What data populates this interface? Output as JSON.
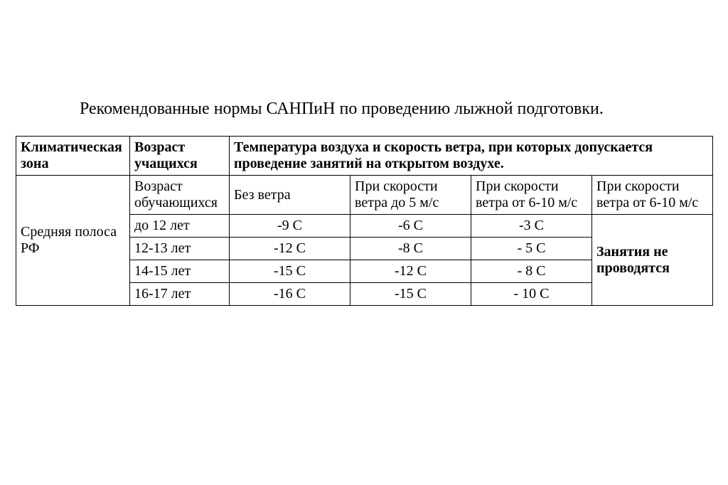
{
  "title": "Рекомендованные нормы САНПиН по проведению лыжной подготовки.",
  "table": {
    "header": {
      "zone": "Климатическая зона",
      "age": "Возраст учащихся",
      "conditions": "Температура  воздуха и скорость ветра, при которых допускается проведение занятий на открытом воздухе."
    },
    "subheader": {
      "age": "Возраст обучающихся",
      "c1": "Без ветра",
      "c2": "При скорости ветра до 5 м/с",
      "c3": "При скорости ветра от 6-10 м/с",
      "c4": "При скорости ветра от 6-10 м/с"
    },
    "zone_label": "Средняя полоса РФ",
    "no_classes": "Занятия не проводятся",
    "rows": [
      {
        "age": "до 12 лет",
        "c1": "-9 С",
        "c2": "-6 С",
        "c3": "-3 С"
      },
      {
        "age": "12-13 лет",
        "c1": "-12 С",
        "c2": "-8 С",
        "c3": "- 5 С"
      },
      {
        "age": "14-15 лет",
        "c1": "-15 С",
        "c2": "-12 С",
        "c3": "- 8 С"
      },
      {
        "age": "16-17 лет",
        "c1": "-16 С",
        "c2": "-15 С",
        "c3": "- 10 С"
      }
    ]
  },
  "style": {
    "background_color": "#ffffff",
    "border_color": "#000000",
    "text_color": "#000000",
    "title_fontsize": 24,
    "cell_fontsize": 20,
    "font_family": "Times New Roman"
  }
}
